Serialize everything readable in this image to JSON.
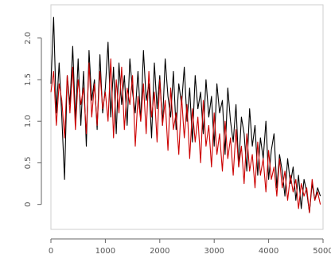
{
  "chart_data": {
    "type": "line",
    "title": "",
    "xlabel": "",
    "ylabel": "",
    "xlim": [
      0,
      5000
    ],
    "ylim": [
      -0.3,
      2.4
    ],
    "grid": false,
    "legend": "none",
    "x_ticks": [
      {
        "value": 0,
        "label": "0"
      },
      {
        "value": 1000,
        "label": "1000"
      },
      {
        "value": 2000,
        "label": "2000"
      },
      {
        "value": 3000,
        "label": "3000"
      },
      {
        "value": 4000,
        "label": "4000"
      },
      {
        "value": 5000,
        "label": "5000"
      }
    ],
    "y_ticks": [
      {
        "value": 0,
        "label": "0"
      },
      {
        "value": 0.5,
        "label": "0.5"
      },
      {
        "value": 1.0,
        "label": "1.0"
      },
      {
        "value": 1.5,
        "label": "1.5"
      },
      {
        "value": 2.0,
        "label": "2.0"
      }
    ],
    "series": [
      {
        "color": "#000000",
        "step": 50,
        "values": [
          1.45,
          2.25,
          1.1,
          1.7,
          1.05,
          0.3,
          1.55,
          1.2,
          1.9,
          1.0,
          1.75,
          0.95,
          1.6,
          0.7,
          1.85,
          1.25,
          1.5,
          0.9,
          1.8,
          1.1,
          1.4,
          1.95,
          1.05,
          1.65,
          0.85,
          1.7,
          1.2,
          1.55,
          0.95,
          1.75,
          1.35,
          1.1,
          1.6,
          1.0,
          1.85,
          1.25,
          1.45,
          0.8,
          1.7,
          1.15,
          1.55,
          0.95,
          1.75,
          1.3,
          1.05,
          1.6,
          0.9,
          1.45,
          1.2,
          1.65,
          1.0,
          1.4,
          0.75,
          1.55,
          1.15,
          1.35,
          0.85,
          1.5,
          1.05,
          1.3,
          0.7,
          1.45,
          1.1,
          1.25,
          0.6,
          1.4,
          1.0,
          0.75,
          1.2,
          0.45,
          1.05,
          0.85,
          0.4,
          1.15,
          0.7,
          0.95,
          0.35,
          0.8,
          0.55,
          1.0,
          0.3,
          0.65,
          0.85,
          0.2,
          0.6,
          0.4,
          0.1,
          0.55,
          0.25,
          0.45,
          0.05,
          0.35,
          -0.05,
          0.3,
          0.15,
          -0.1,
          0.25,
          0.05,
          0.2,
          0.1
        ]
      },
      {
        "color": "#cc0000",
        "step": 50,
        "values": [
          1.35,
          1.6,
          0.95,
          1.45,
          1.25,
          0.8,
          1.55,
          1.1,
          1.65,
          0.9,
          1.5,
          1.2,
          1.4,
          0.85,
          1.7,
          1.05,
          1.45,
          0.95,
          1.6,
          1.15,
          1.35,
          1.0,
          1.75,
          0.8,
          1.5,
          1.1,
          1.65,
          0.9,
          1.4,
          1.2,
          1.55,
          0.7,
          1.3,
          1.0,
          1.45,
          0.85,
          1.6,
          1.05,
          1.35,
          0.75,
          1.5,
          0.95,
          1.25,
          0.65,
          1.4,
          0.9,
          1.1,
          0.6,
          1.3,
          0.8,
          1.2,
          0.55,
          1.15,
          0.75,
          1.05,
          0.5,
          1.25,
          0.7,
          0.95,
          0.45,
          1.1,
          0.6,
          0.85,
          0.4,
          1.0,
          0.55,
          0.8,
          0.35,
          0.9,
          0.45,
          0.7,
          0.25,
          0.85,
          0.4,
          0.6,
          0.2,
          0.75,
          0.35,
          0.55,
          0.15,
          0.65,
          0.3,
          0.45,
          0.1,
          0.55,
          0.2,
          0.4,
          0.05,
          0.35,
          0.15,
          0.3,
          -0.05,
          0.25,
          0.1,
          0.2,
          -0.1,
          0.3,
          0.05,
          0.15,
          0.0
        ]
      }
    ]
  }
}
